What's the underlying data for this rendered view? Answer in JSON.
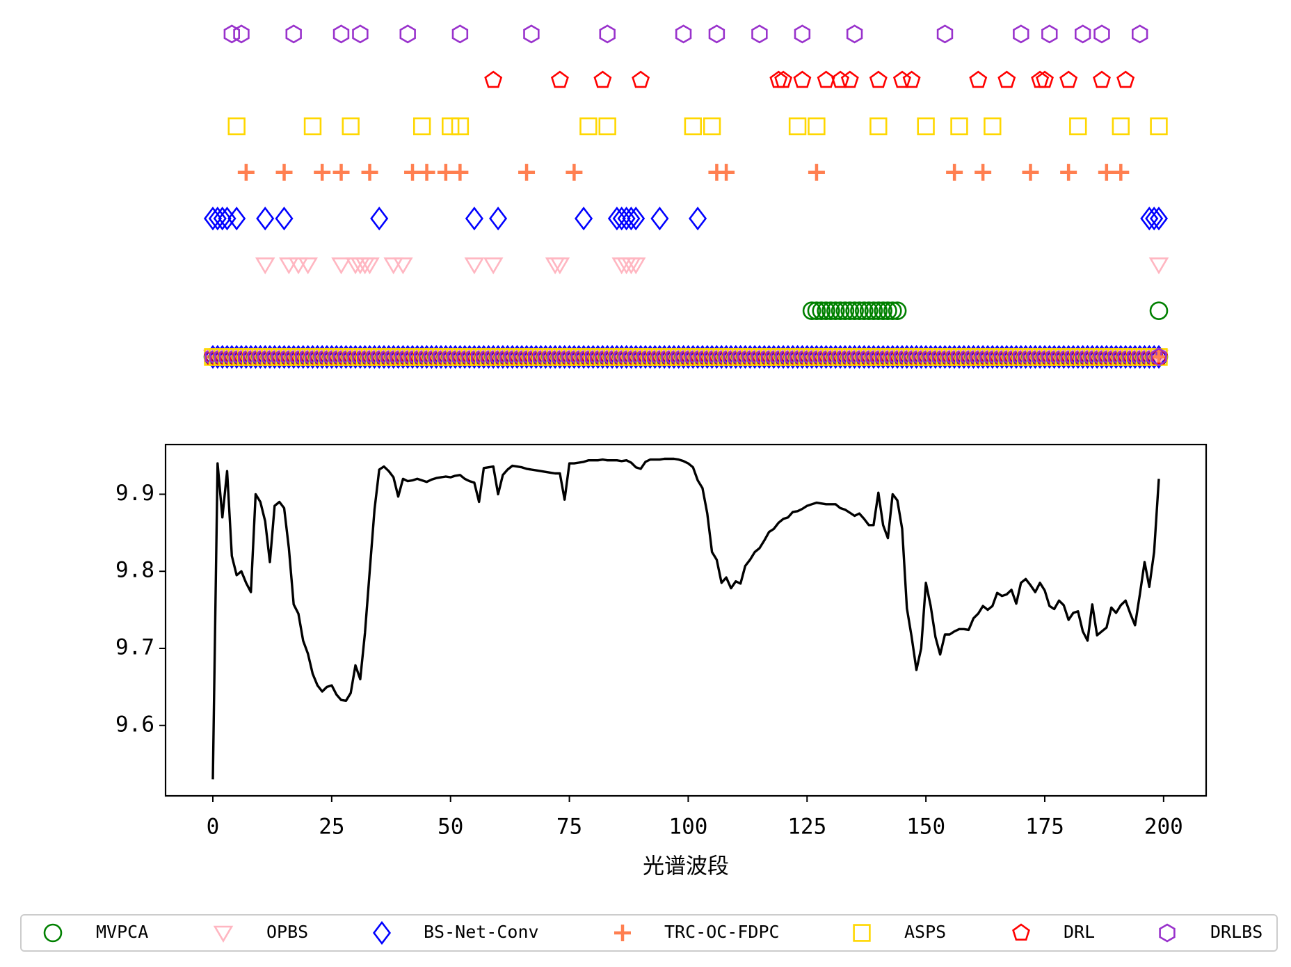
{
  "chart_data": [
    {
      "type": "strip",
      "xlim": [
        -9.95,
        208.95
      ],
      "series": [
        {
          "name": "MVPCA",
          "color": "#008000",
          "marker": "o",
          "x": [
            126,
            127,
            128,
            129,
            130,
            131,
            132,
            133,
            134,
            135,
            136,
            137,
            138,
            139,
            140,
            141,
            142,
            143,
            144,
            199
          ]
        },
        {
          "name": "OPBS",
          "color": "#ffb6c1",
          "marker": "v",
          "x": [
            11,
            16,
            18,
            20,
            27,
            30,
            31,
            32,
            33,
            38,
            40,
            55,
            59,
            72,
            73,
            86,
            87,
            88,
            89,
            199
          ]
        },
        {
          "name": "BS-Net-Conv",
          "color": "#0000ff",
          "marker": "D",
          "x": [
            0,
            1,
            2,
            3,
            5,
            11,
            15,
            35,
            55,
            60,
            78,
            85,
            86,
            87,
            88,
            89,
            94,
            102,
            197,
            198,
            199
          ]
        },
        {
          "name": "TRC-OC-FDPC",
          "color": "#ff7f50",
          "marker": "+",
          "x": [
            7,
            15,
            23,
            27,
            33,
            42,
            45,
            49,
            52,
            66,
            76,
            106,
            108,
            127,
            156,
            162,
            172,
            180,
            188,
            191
          ]
        },
        {
          "name": "ASPS",
          "color": "#ffd700",
          "marker": "s",
          "x": [
            5,
            21,
            29,
            44,
            50,
            52,
            79,
            83,
            101,
            105,
            123,
            127,
            140,
            150,
            157,
            164,
            182,
            191,
            199
          ]
        },
        {
          "name": "DRL",
          "color": "#ff0000",
          "marker": "p",
          "x": [
            59,
            73,
            82,
            90,
            119,
            120,
            124,
            129,
            132,
            134,
            140,
            145,
            147,
            161,
            167,
            174,
            175,
            180,
            187,
            192
          ]
        },
        {
          "name": "DRLBS",
          "color": "#9932cc",
          "marker": "h",
          "x": [
            4,
            6,
            17,
            27,
            31,
            41,
            52,
            67,
            83,
            99,
            106,
            115,
            124,
            135,
            154,
            170,
            176,
            183,
            187,
            195
          ]
        }
      ],
      "band_row": [
        0,
        1,
        2,
        3,
        4,
        5,
        6,
        7,
        8,
        9,
        10,
        11,
        12,
        13,
        14,
        15,
        16,
        17,
        18,
        19,
        20,
        21,
        22,
        23,
        24,
        25,
        26,
        27,
        28,
        29,
        30,
        31,
        32,
        33,
        34,
        35,
        36,
        37,
        38,
        39,
        40,
        41,
        42,
        43,
        44,
        45,
        46,
        47,
        48,
        49,
        50,
        51,
        52,
        53,
        54,
        55,
        56,
        57,
        58,
        59,
        60,
        61,
        62,
        63,
        64,
        65,
        66,
        67,
        68,
        69,
        70,
        71,
        72,
        73,
        74,
        75,
        76,
        77,
        78,
        79,
        80,
        81,
        82,
        83,
        84,
        85,
        86,
        87,
        88,
        89,
        90,
        91,
        92,
        93,
        94,
        95,
        96,
        97,
        98,
        99,
        100,
        101,
        102,
        103,
        104,
        105,
        106,
        107,
        108,
        109,
        110,
        111,
        112,
        113,
        114,
        115,
        116,
        117,
        118,
        119,
        120,
        121,
        122,
        123,
        124,
        125,
        126,
        127,
        128,
        129,
        130,
        131,
        132,
        133,
        134,
        135,
        136,
        137,
        138,
        139,
        140,
        141,
        142,
        143,
        144,
        145,
        146,
        147,
        148,
        149,
        150,
        151,
        152,
        153,
        154,
        155,
        156,
        157,
        158,
        159,
        160,
        161,
        162,
        163,
        164,
        165,
        166,
        167,
        168,
        169,
        170,
        171,
        172,
        173,
        174,
        175,
        176,
        177,
        178,
        179,
        180,
        181,
        182,
        183,
        184,
        185,
        186,
        187,
        188,
        189,
        190,
        191,
        192,
        193,
        194,
        195,
        196,
        197,
        198,
        199
      ]
    },
    {
      "type": "line",
      "x_label": "光谱波段",
      "color": "#000000",
      "xlim": [
        -9.95,
        208.95
      ],
      "ylim": [
        9.5086,
        9.9645
      ],
      "xticks": [
        0,
        25,
        50,
        75,
        100,
        125,
        150,
        175,
        200
      ],
      "yticks": [
        9.6,
        9.7,
        9.8,
        9.9
      ],
      "x": [
        0,
        1,
        2,
        3,
        4,
        5,
        6,
        7,
        8,
        9,
        10,
        11,
        12,
        13,
        14,
        15,
        16,
        17,
        18,
        19,
        20,
        21,
        22,
        23,
        24,
        25,
        26,
        27,
        28,
        29,
        30,
        31,
        32,
        33,
        34,
        35,
        36,
        37,
        38,
        39,
        40,
        41,
        42,
        43,
        44,
        45,
        46,
        47,
        48,
        49,
        50,
        51,
        52,
        53,
        54,
        55,
        56,
        57,
        58,
        59,
        60,
        61,
        62,
        63,
        64,
        65,
        66,
        67,
        68,
        69,
        70,
        71,
        72,
        73,
        74,
        75,
        76,
        77,
        78,
        79,
        80,
        81,
        82,
        83,
        84,
        85,
        86,
        87,
        88,
        89,
        90,
        91,
        92,
        93,
        94,
        95,
        96,
        97,
        98,
        99,
        100,
        101,
        102,
        103,
        104,
        105,
        106,
        107,
        108,
        109,
        110,
        111,
        112,
        113,
        114,
        115,
        116,
        117,
        118,
        119,
        120,
        121,
        122,
        123,
        124,
        125,
        126,
        127,
        128,
        129,
        130,
        131,
        132,
        133,
        134,
        135,
        136,
        137,
        138,
        139,
        140,
        141,
        142,
        143,
        144,
        145,
        146,
        147,
        148,
        149,
        150,
        151,
        152,
        153,
        154,
        155,
        156,
        157,
        158,
        159,
        160,
        161,
        162,
        163,
        164,
        165,
        166,
        167,
        168,
        169,
        170,
        171,
        172,
        173,
        174,
        175,
        176,
        177,
        178,
        179,
        180,
        181,
        182,
        183,
        184,
        185,
        186,
        187,
        188,
        189,
        190,
        191,
        192,
        193,
        194,
        195,
        196,
        197,
        198,
        199
      ],
      "values": [
        9.53,
        9.94,
        9.87,
        9.93,
        9.82,
        9.795,
        9.8,
        9.785,
        9.773,
        9.9,
        9.89,
        9.865,
        9.812,
        9.885,
        9.89,
        9.882,
        9.83,
        9.757,
        9.745,
        9.71,
        9.693,
        9.667,
        9.652,
        9.644,
        9.65,
        9.652,
        9.64,
        9.633,
        9.632,
        9.642,
        9.678,
        9.66,
        9.72,
        9.8,
        9.88,
        9.932,
        9.936,
        9.93,
        9.922,
        9.897,
        9.92,
        9.917,
        9.918,
        9.92,
        9.918,
        9.916,
        9.919,
        9.921,
        9.922,
        9.923,
        9.922,
        9.924,
        9.925,
        9.92,
        9.917,
        9.915,
        9.89,
        9.934,
        9.935,
        9.936,
        9.9,
        9.925,
        9.932,
        9.937,
        9.936,
        9.935,
        9.933,
        9.932,
        9.931,
        9.93,
        9.929,
        9.928,
        9.927,
        9.927,
        9.893,
        9.94,
        9.94,
        9.941,
        9.942,
        9.944,
        9.944,
        9.944,
        9.945,
        9.944,
        9.944,
        9.944,
        9.943,
        9.944,
        9.941,
        9.935,
        9.933,
        9.942,
        9.945,
        9.945,
        9.945,
        9.946,
        9.946,
        9.946,
        9.945,
        9.943,
        9.94,
        9.935,
        9.918,
        9.908,
        9.875,
        9.825,
        9.815,
        9.785,
        9.792,
        9.778,
        9.787,
        9.784,
        9.807,
        9.815,
        9.825,
        9.83,
        9.84,
        9.851,
        9.855,
        9.863,
        9.868,
        9.87,
        9.877,
        9.878,
        9.881,
        9.885,
        9.887,
        9.889,
        9.888,
        9.887,
        9.887,
        9.887,
        9.882,
        9.88,
        9.876,
        9.872,
        9.875,
        9.868,
        9.86,
        9.86,
        9.902,
        9.86,
        9.843,
        9.9,
        9.892,
        9.855,
        9.752,
        9.715,
        9.672,
        9.7,
        9.785,
        9.755,
        9.715,
        9.692,
        9.718,
        9.718,
        9.722,
        9.725,
        9.725,
        9.724,
        9.739,
        9.745,
        9.755,
        9.75,
        9.755,
        9.772,
        9.768,
        9.77,
        9.776,
        9.758,
        9.785,
        9.79,
        9.782,
        9.773,
        9.785,
        9.775,
        9.755,
        9.751,
        9.762,
        9.756,
        9.737,
        9.746,
        9.748,
        9.722,
        9.71,
        9.757,
        9.717,
        9.722,
        9.727,
        9.753,
        9.746,
        9.756,
        9.762,
        9.745,
        9.73,
        9.77,
        9.812,
        9.78,
        9.825,
        9.92
      ]
    }
  ]
}
